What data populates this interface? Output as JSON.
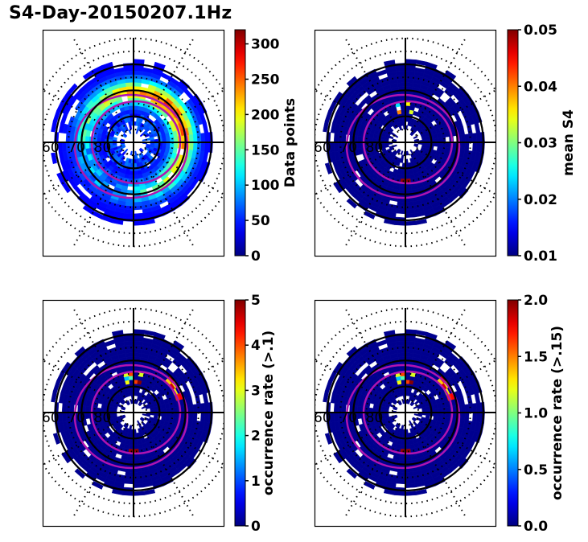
{
  "figure": {
    "title": "S4-Day-20150207.1Hz"
  },
  "chart_data": [
    {
      "type": "heatmap",
      "projection": "polar (magnetic latitude / local time)",
      "title": "",
      "colorbar": {
        "label": "Data points",
        "range": [
          0,
          320
        ],
        "ticks": [
          0,
          50,
          100,
          150,
          200,
          250,
          300
        ],
        "tick_labels": [
          "0",
          "50",
          "100",
          "150",
          "200",
          "250",
          "300"
        ],
        "colormap": "jet"
      },
      "radial_labels": [
        "60",
        "70",
        "80"
      ],
      "summary": "Counts ring from ~60-80 deg latitude; highest counts (~250-320) in an arc on the dusk/upper-right side near 70 deg; inner region near 85-90 deg empty.",
      "overlays": [
        "two magenta auroral oval boundaries",
        "black circles at 60, 70, 80 deg",
        "dotted latitude/local-time grid"
      ]
    },
    {
      "type": "heatmap",
      "projection": "polar (magnetic latitude / local time)",
      "title": "",
      "colorbar": {
        "label": "mean S4",
        "range": [
          0.01,
          0.05
        ],
        "ticks": [
          0.01,
          0.02,
          0.03,
          0.04,
          0.05
        ],
        "tick_labels": [
          "0.01",
          "0.02",
          "0.03",
          "0.04",
          "0.05"
        ],
        "colormap": "jet"
      },
      "radial_labels": [
        "60",
        "70",
        "80"
      ],
      "summary": "Almost all bins at ~0.01 (dark blue); a few elevated bins (0.02-0.05) near noon sector around 75-80 deg and one near midnight.",
      "overlays": [
        "two magenta auroral oval boundaries",
        "black circles at 60, 70, 80 deg",
        "dotted latitude/local-time grid"
      ]
    },
    {
      "type": "heatmap",
      "projection": "polar (magnetic latitude / local time)",
      "title": "",
      "colorbar": {
        "label": "occurrence rate (>.1)",
        "range": [
          0,
          5
        ],
        "ticks": [
          0,
          1,
          2,
          3,
          4,
          5
        ],
        "tick_labels": [
          "0",
          "1",
          "2",
          "3",
          "4",
          "5"
        ],
        "colormap": "jet"
      },
      "radial_labels": [
        "60",
        "70",
        "80"
      ],
      "summary": "Mostly 0; high occurrence (~5) bins near noon around 70-75 deg and along the oval in the dusk and dawn sectors.",
      "overlays": [
        "two magenta auroral oval boundaries",
        "black circles at 60, 70, 80 deg",
        "dotted latitude/local-time grid"
      ]
    },
    {
      "type": "heatmap",
      "projection": "polar (magnetic latitude / local time)",
      "title": "",
      "colorbar": {
        "label": "occurrence rate (>.15)",
        "range": [
          0.0,
          2.0
        ],
        "ticks": [
          0.0,
          0.5,
          1.0,
          1.5,
          2.0
        ],
        "tick_labels": [
          "0.0",
          "0.5",
          "1.0",
          "1.5",
          "2.0"
        ],
        "colormap": "jet"
      },
      "radial_labels": [
        "60",
        "70",
        "80"
      ],
      "summary": "Mostly 0; a few saturated (~2.0) bins near noon around 70-75 deg and sparse bins along the dusk oval.",
      "overlays": [
        "two magenta auroral oval boundaries",
        "black circles at 60, 70, 80 deg",
        "dotted latitude/local-time grid"
      ]
    }
  ]
}
